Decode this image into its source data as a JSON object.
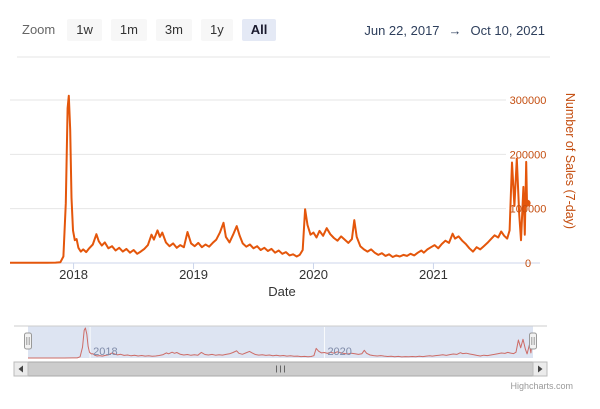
{
  "toolbar": {
    "zoom_label": "Zoom",
    "buttons": [
      {
        "label": "1w",
        "selected": false
      },
      {
        "label": "1m",
        "selected": false
      },
      {
        "label": "3m",
        "selected": false
      },
      {
        "label": "1y",
        "selected": false
      },
      {
        "label": "All",
        "selected": true
      }
    ],
    "range": {
      "from": "Jun 22, 2017",
      "arrow": "→",
      "to": "Oct 10, 2021"
    }
  },
  "chart_data": {
    "type": "line",
    "title": "",
    "xlabel": "Date",
    "ylabel": "Number of Sales (7-day)",
    "xlim": [
      2017.47,
      2021.78
    ],
    "ylim": [
      0,
      377000
    ],
    "grid": true,
    "legend": "none",
    "xticks": [
      {
        "value": 2018,
        "label": "2018"
      },
      {
        "value": 2019,
        "label": "2019"
      },
      {
        "value": 2020,
        "label": "2020"
      },
      {
        "value": 2021,
        "label": "2021"
      }
    ],
    "yticks": [
      {
        "value": 0,
        "label": "0"
      },
      {
        "value": 100000,
        "label": "100000"
      },
      {
        "value": 200000,
        "label": "200000"
      },
      {
        "value": 300000,
        "label": "300000"
      }
    ],
    "series": [
      {
        "name": "Number of Sales (7-day)",
        "color": "#e4560b",
        "points": [
          [
            2017.47,
            300
          ],
          [
            2017.55,
            400
          ],
          [
            2017.62,
            350
          ],
          [
            2017.7,
            500
          ],
          [
            2017.78,
            450
          ],
          [
            2017.85,
            700
          ],
          [
            2017.89,
            1500
          ],
          [
            2017.915,
            12000
          ],
          [
            2017.935,
            110000
          ],
          [
            2017.95,
            285000
          ],
          [
            2017.96,
            308000
          ],
          [
            2017.972,
            245000
          ],
          [
            2017.983,
            120000
          ],
          [
            2017.995,
            60000
          ],
          [
            2018.01,
            42000
          ],
          [
            2018.025,
            44000
          ],
          [
            2018.04,
            28000
          ],
          [
            2018.06,
            21000
          ],
          [
            2018.08,
            25000
          ],
          [
            2018.105,
            20000
          ],
          [
            2018.13,
            27000
          ],
          [
            2018.16,
            34000
          ],
          [
            2018.19,
            53000
          ],
          [
            2018.21,
            40000
          ],
          [
            2018.235,
            32000
          ],
          [
            2018.26,
            38000
          ],
          [
            2018.29,
            27000
          ],
          [
            2018.32,
            31000
          ],
          [
            2018.35,
            23000
          ],
          [
            2018.38,
            28000
          ],
          [
            2018.41,
            21000
          ],
          [
            2018.44,
            26000
          ],
          [
            2018.47,
            19000
          ],
          [
            2018.5,
            24000
          ],
          [
            2018.53,
            17000
          ],
          [
            2018.56,
            21000
          ],
          [
            2018.59,
            26000
          ],
          [
            2018.62,
            33000
          ],
          [
            2018.65,
            52000
          ],
          [
            2018.67,
            43000
          ],
          [
            2018.7,
            60000
          ],
          [
            2018.72,
            48000
          ],
          [
            2018.74,
            56000
          ],
          [
            2018.77,
            38000
          ],
          [
            2018.8,
            31000
          ],
          [
            2018.83,
            36000
          ],
          [
            2018.86,
            28000
          ],
          [
            2018.89,
            33000
          ],
          [
            2018.92,
            29000
          ],
          [
            2018.95,
            57000
          ],
          [
            2018.98,
            36000
          ],
          [
            2019.01,
            31000
          ],
          [
            2019.04,
            37000
          ],
          [
            2019.07,
            29000
          ],
          [
            2019.1,
            34000
          ],
          [
            2019.13,
            30000
          ],
          [
            2019.16,
            37000
          ],
          [
            2019.19,
            43000
          ],
          [
            2019.22,
            56000
          ],
          [
            2019.25,
            74000
          ],
          [
            2019.27,
            48000
          ],
          [
            2019.3,
            38000
          ],
          [
            2019.33,
            52000
          ],
          [
            2019.36,
            68000
          ],
          [
            2019.385,
            50000
          ],
          [
            2019.41,
            36000
          ],
          [
            2019.44,
            30000
          ],
          [
            2019.47,
            34000
          ],
          [
            2019.5,
            27000
          ],
          [
            2019.53,
            31000
          ],
          [
            2019.56,
            24000
          ],
          [
            2019.59,
            28000
          ],
          [
            2019.62,
            22000
          ],
          [
            2019.65,
            26000
          ],
          [
            2019.68,
            19000
          ],
          [
            2019.71,
            23000
          ],
          [
            2019.74,
            17000
          ],
          [
            2019.77,
            20000
          ],
          [
            2019.8,
            14000
          ],
          [
            2019.83,
            16000
          ],
          [
            2019.86,
            12000
          ],
          [
            2019.885,
            15000
          ],
          [
            2019.91,
            24000
          ],
          [
            2019.93,
            99000
          ],
          [
            2019.95,
            70000
          ],
          [
            2019.975,
            52000
          ],
          [
            2020.0,
            56000
          ],
          [
            2020.025,
            47000
          ],
          [
            2020.05,
            59000
          ],
          [
            2020.08,
            50000
          ],
          [
            2020.11,
            64000
          ],
          [
            2020.14,
            53000
          ],
          [
            2020.17,
            46000
          ],
          [
            2020.2,
            41000
          ],
          [
            2020.23,
            49000
          ],
          [
            2020.26,
            43000
          ],
          [
            2020.29,
            37000
          ],
          [
            2020.32,
            44000
          ],
          [
            2020.34,
            79000
          ],
          [
            2020.36,
            48000
          ],
          [
            2020.39,
            31000
          ],
          [
            2020.42,
            25000
          ],
          [
            2020.45,
            21000
          ],
          [
            2020.48,
            25000
          ],
          [
            2020.51,
            19000
          ],
          [
            2020.54,
            15000
          ],
          [
            2020.57,
            18000
          ],
          [
            2020.6,
            13000
          ],
          [
            2020.63,
            16000
          ],
          [
            2020.66,
            11000
          ],
          [
            2020.69,
            14000
          ],
          [
            2020.72,
            12000
          ],
          [
            2020.75,
            15000
          ],
          [
            2020.78,
            13000
          ],
          [
            2020.81,
            17000
          ],
          [
            2020.84,
            14000
          ],
          [
            2020.87,
            19000
          ],
          [
            2020.9,
            23000
          ],
          [
            2020.92,
            19000
          ],
          [
            2020.95,
            25000
          ],
          [
            2020.98,
            29000
          ],
          [
            2021.01,
            33000
          ],
          [
            2021.04,
            27000
          ],
          [
            2021.07,
            35000
          ],
          [
            2021.1,
            41000
          ],
          [
            2021.13,
            37000
          ],
          [
            2021.16,
            54000
          ],
          [
            2021.18,
            45000
          ],
          [
            2021.21,
            49000
          ],
          [
            2021.24,
            41000
          ],
          [
            2021.27,
            35000
          ],
          [
            2021.3,
            27000
          ],
          [
            2021.33,
            21000
          ],
          [
            2021.36,
            29000
          ],
          [
            2021.39,
            25000
          ],
          [
            2021.42,
            31000
          ],
          [
            2021.45,
            37000
          ],
          [
            2021.48,
            44000
          ],
          [
            2021.51,
            51000
          ],
          [
            2021.54,
            47000
          ],
          [
            2021.565,
            58000
          ],
          [
            2021.59,
            50000
          ],
          [
            2021.615,
            45000
          ],
          [
            2021.635,
            60000
          ],
          [
            2021.655,
            185000
          ],
          [
            2021.675,
            105000
          ],
          [
            2021.695,
            192000
          ],
          [
            2021.715,
            90000
          ],
          [
            2021.73,
            42000
          ],
          [
            2021.75,
            140000
          ],
          [
            2021.762,
            52000
          ],
          [
            2021.773,
            186000
          ],
          [
            2021.78,
            110000
          ]
        ]
      }
    ]
  },
  "navigator": {
    "labels": [
      {
        "value": 2018,
        "label": "2018"
      },
      {
        "value": 2020,
        "label": "2020"
      }
    ]
  },
  "credits": {
    "label": "Highcharts.com"
  },
  "colors": {
    "series": "#e4560b",
    "axis_tick_labels": "#c44e10",
    "grid": "#e6e6e6",
    "axis_line": "#ccd6eb",
    "navigator_line": "#cd6b66",
    "navigator_mask": "#dde4f2",
    "range_text": "#2e3f5c"
  }
}
